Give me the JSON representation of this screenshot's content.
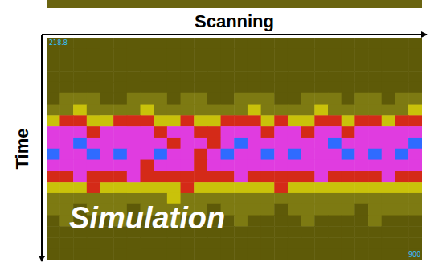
{
  "chart_data": {
    "type": "heatmap",
    "x_label": "Scanning",
    "y_label": "Time",
    "annotations": [
      "Simulation"
    ],
    "corner_labels": [
      "218.8",
      "900"
    ],
    "tick_labels": false,
    "zlim": [
      0,
      5
    ],
    "colors": [
      "#5e5a08",
      "#7d7a12",
      "#c9c20a",
      "#d42a18",
      "#e03ce0",
      "#2f6bff"
    ],
    "cells": [
      [
        0,
        0,
        0,
        0,
        0,
        0,
        0,
        0,
        0,
        0,
        0,
        0,
        0,
        0,
        0,
        0,
        0,
        0,
        0,
        0,
        0,
        0,
        0,
        0,
        0,
        0,
        0,
        0
      ],
      [
        0,
        0,
        0,
        0,
        0,
        0,
        0,
        0,
        0,
        0,
        0,
        0,
        0,
        0,
        0,
        0,
        0,
        0,
        0,
        0,
        0,
        0,
        0,
        0,
        0,
        0,
        0,
        0
      ],
      [
        0,
        0,
        0,
        0,
        0,
        0,
        0,
        0,
        0,
        0,
        0,
        0,
        0,
        0,
        0,
        0,
        0,
        0,
        0,
        0,
        0,
        0,
        0,
        0,
        0,
        0,
        0,
        0
      ],
      [
        0,
        0,
        0,
        0,
        0,
        0,
        0,
        0,
        0,
        0,
        0,
        0,
        0,
        0,
        0,
        0,
        0,
        0,
        0,
        0,
        0,
        0,
        0,
        0,
        0,
        0,
        0,
        0
      ],
      [
        0,
        0,
        0,
        0,
        0,
        0,
        0,
        0,
        0,
        0,
        0,
        0,
        0,
        0,
        0,
        0,
        0,
        0,
        0,
        0,
        0,
        0,
        0,
        0,
        0,
        0,
        0,
        0
      ],
      [
        0,
        1,
        1,
        1,
        0,
        0,
        1,
        1,
        1,
        0,
        1,
        1,
        0,
        0,
        1,
        1,
        1,
        0,
        0,
        1,
        1,
        1,
        0,
        1,
        1,
        0,
        1,
        1
      ],
      [
        1,
        1,
        2,
        1,
        1,
        1,
        1,
        2,
        1,
        1,
        1,
        1,
        1,
        1,
        1,
        2,
        1,
        1,
        1,
        1,
        2,
        1,
        1,
        1,
        1,
        1,
        1,
        2
      ],
      [
        2,
        3,
        3,
        2,
        2,
        3,
        3,
        3,
        2,
        2,
        3,
        2,
        2,
        3,
        3,
        3,
        2,
        3,
        2,
        2,
        3,
        3,
        2,
        3,
        3,
        2,
        3,
        3
      ],
      [
        4,
        4,
        4,
        3,
        4,
        4,
        4,
        4,
        3,
        4,
        4,
        3,
        3,
        4,
        4,
        4,
        3,
        4,
        4,
        3,
        4,
        4,
        3,
        4,
        4,
        4,
        4,
        4
      ],
      [
        4,
        4,
        5,
        4,
        4,
        4,
        4,
        4,
        4,
        3,
        4,
        4,
        3,
        4,
        5,
        4,
        4,
        4,
        4,
        4,
        4,
        5,
        4,
        4,
        4,
        4,
        4,
        5
      ],
      [
        5,
        4,
        4,
        5,
        4,
        5,
        4,
        4,
        5,
        4,
        4,
        3,
        4,
        5,
        4,
        4,
        5,
        4,
        5,
        4,
        4,
        4,
        5,
        4,
        5,
        4,
        5,
        4
      ],
      [
        4,
        4,
        4,
        4,
        4,
        4,
        4,
        3,
        4,
        4,
        4,
        3,
        4,
        4,
        4,
        4,
        4,
        4,
        4,
        4,
        4,
        4,
        4,
        4,
        4,
        4,
        4,
        4
      ],
      [
        3,
        3,
        4,
        3,
        3,
        3,
        4,
        3,
        3,
        3,
        3,
        3,
        3,
        3,
        4,
        3,
        3,
        3,
        3,
        3,
        4,
        3,
        3,
        3,
        3,
        4,
        3,
        3
      ],
      [
        2,
        2,
        2,
        3,
        2,
        2,
        2,
        2,
        2,
        2,
        3,
        2,
        2,
        2,
        2,
        2,
        2,
        3,
        2,
        2,
        2,
        2,
        2,
        2,
        2,
        2,
        2,
        2
      ],
      [
        1,
        1,
        1,
        1,
        1,
        1,
        1,
        1,
        1,
        2,
        1,
        1,
        1,
        1,
        1,
        1,
        1,
        1,
        1,
        1,
        1,
        1,
        1,
        1,
        1,
        1,
        1,
        1
      ],
      [
        1,
        1,
        0,
        1,
        1,
        1,
        0,
        1,
        1,
        1,
        1,
        1,
        0,
        1,
        1,
        1,
        1,
        0,
        1,
        1,
        1,
        1,
        1,
        0,
        1,
        1,
        1,
        1
      ],
      [
        0,
        1,
        0,
        0,
        0,
        1,
        0,
        0,
        0,
        1,
        0,
        0,
        0,
        0,
        1,
        0,
        0,
        0,
        0,
        1,
        0,
        0,
        0,
        0,
        1,
        0,
        0,
        0
      ],
      [
        0,
        0,
        0,
        0,
        0,
        0,
        0,
        0,
        0,
        0,
        0,
        0,
        0,
        0,
        0,
        0,
        0,
        0,
        0,
        0,
        0,
        0,
        0,
        0,
        0,
        0,
        0,
        0
      ],
      [
        0,
        0,
        0,
        0,
        0,
        0,
        0,
        0,
        0,
        0,
        0,
        0,
        0,
        0,
        0,
        0,
        0,
        0,
        0,
        0,
        0,
        0,
        0,
        0,
        0,
        0,
        0,
        0
      ],
      [
        0,
        0,
        0,
        0,
        0,
        0,
        0,
        0,
        0,
        0,
        0,
        0,
        0,
        0,
        0,
        0,
        0,
        0,
        0,
        0,
        0,
        0,
        0,
        0,
        0,
        0,
        0,
        0
      ]
    ]
  }
}
